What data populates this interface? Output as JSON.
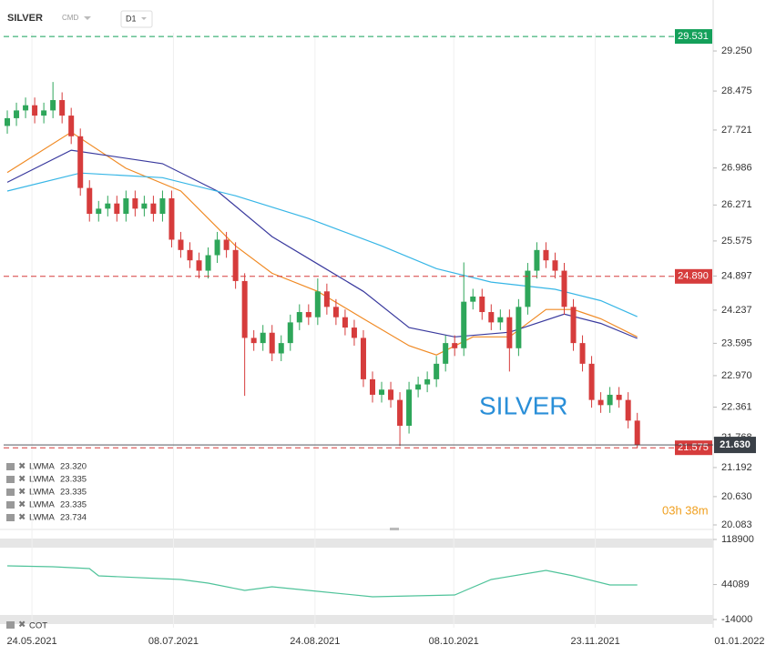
{
  "chart_data": {
    "type": "candlestick",
    "title": "SILVER",
    "symbol_type": "CMD",
    "timeframe": "D1",
    "watermark": "SILVER",
    "countdown": "03h 38m",
    "up_color": "#2ea65a",
    "down_color": "#d63c3c",
    "open": [
      27.8,
      27.95,
      28.1,
      28.2,
      28.0,
      28.1,
      28.3,
      28.0,
      27.6,
      26.6,
      26.1,
      26.2,
      26.3,
      26.1,
      26.4,
      26.2,
      26.3,
      26.1,
      26.4,
      25.6,
      25.4,
      25.2,
      25.0,
      25.3,
      25.6,
      25.4,
      24.8,
      23.7,
      23.6,
      23.8,
      23.4,
      23.6,
      24.0,
      24.2,
      24.1,
      24.6,
      24.3,
      24.1,
      23.9,
      23.7,
      22.9,
      22.6,
      22.7,
      22.5,
      22.0,
      22.7,
      22.8,
      22.9,
      23.2,
      23.6,
      23.5,
      24.4,
      24.5,
      24.2,
      24.0,
      24.1,
      23.5,
      24.3,
      25.0,
      25.4,
      25.2,
      25.0,
      24.3,
      23.6,
      23.2,
      22.5,
      22.4,
      22.6,
      22.5,
      22.1
    ],
    "high": [
      28.1,
      28.25,
      28.35,
      28.35,
      28.25,
      28.65,
      28.45,
      28.15,
      27.75,
      26.75,
      26.35,
      26.45,
      26.45,
      26.55,
      26.55,
      26.45,
      26.45,
      26.55,
      26.55,
      25.75,
      25.55,
      25.35,
      25.45,
      25.75,
      25.75,
      25.55,
      24.95,
      23.85,
      23.95,
      23.95,
      23.75,
      24.15,
      24.35,
      24.35,
      24.85,
      24.75,
      24.45,
      24.25,
      24.05,
      23.85,
      23.05,
      22.85,
      22.85,
      22.65,
      22.85,
      22.95,
      23.05,
      23.35,
      23.75,
      23.75,
      25.16,
      24.65,
      24.65,
      24.35,
      24.25,
      24.25,
      24.45,
      25.15,
      25.55,
      25.55,
      25.35,
      25.15,
      24.45,
      23.75,
      23.35,
      22.65,
      22.75,
      22.75,
      22.65,
      22.25
    ],
    "low": [
      27.65,
      27.8,
      27.95,
      27.85,
      27.85,
      27.95,
      27.85,
      27.45,
      26.45,
      25.95,
      25.95,
      26.05,
      25.95,
      25.95,
      26.05,
      26.05,
      25.95,
      25.95,
      25.45,
      25.25,
      25.05,
      24.85,
      24.85,
      25.15,
      25.25,
      24.65,
      22.58,
      23.45,
      23.45,
      23.25,
      23.25,
      23.45,
      23.85,
      23.95,
      23.95,
      24.15,
      23.95,
      23.75,
      23.55,
      22.75,
      22.45,
      22.45,
      22.35,
      21.61,
      21.85,
      22.55,
      22.65,
      22.75,
      23.05,
      23.35,
      23.35,
      24.25,
      24.05,
      23.85,
      23.85,
      23.05,
      23.35,
      24.15,
      24.85,
      25.05,
      24.85,
      24.15,
      23.45,
      23.05,
      22.35,
      22.25,
      22.25,
      22.35,
      21.95,
      21.57
    ],
    "close": [
      27.95,
      28.1,
      28.2,
      28.0,
      28.1,
      28.3,
      28.0,
      27.6,
      26.6,
      26.1,
      26.2,
      26.3,
      26.1,
      26.4,
      26.2,
      26.3,
      26.1,
      26.4,
      25.6,
      25.4,
      25.2,
      25.0,
      25.3,
      25.6,
      25.4,
      24.8,
      23.7,
      23.6,
      23.8,
      23.4,
      23.6,
      24.0,
      24.2,
      24.1,
      24.6,
      24.3,
      24.1,
      23.9,
      23.7,
      22.9,
      22.6,
      22.7,
      22.5,
      22.0,
      22.7,
      22.8,
      22.9,
      23.2,
      23.6,
      23.5,
      24.4,
      24.5,
      24.2,
      24.0,
      24.1,
      23.5,
      24.3,
      25.0,
      25.4,
      25.2,
      25.0,
      24.3,
      23.6,
      23.2,
      22.5,
      22.4,
      22.6,
      22.5,
      22.1,
      21.63
    ],
    "xlim": [
      -0.8,
      81.6
    ],
    "xticks": [
      {
        "value": 2.7,
        "label": "24.05.2021"
      },
      {
        "value": 18.2,
        "label": "08.07.2021"
      },
      {
        "value": 33.7,
        "label": "24.08.2021"
      },
      {
        "value": 48.9,
        "label": "08.10.2021"
      },
      {
        "value": 64.4,
        "label": "23.11.2021"
      },
      {
        "value": 80.2,
        "label": "01.01.2022"
      }
    ],
    "ylim": [
      20.03,
      30.236
    ],
    "yticks": [
      {
        "value": 29.25,
        "label": "29.250"
      },
      28.475,
      27.721,
      26.986,
      26.271,
      25.575,
      24.897,
      24.237,
      23.595,
      {
        "value": 22.97,
        "label": "22.970"
      },
      22.361,
      21.768,
      21.192,
      {
        "value": 20.63,
        "label": "20.630"
      },
      20.083
    ],
    "levels": [
      {
        "value": 29.531,
        "color": "#14a05a"
      },
      {
        "value": 24.89,
        "label": "24.890",
        "color": "#d63c3c"
      },
      {
        "value": 21.575,
        "color": "#d63c3c"
      }
    ],
    "last": {
      "value": 21.63,
      "label": "21.630",
      "color": "#3b4148"
    },
    "lines": [
      {
        "color": "#f08a24",
        "x": [
          0,
          7,
          13,
          19,
          25,
          29,
          34,
          39,
          44,
          47,
          51,
          55,
          59,
          62,
          65,
          69
        ],
        "values": [
          26.9,
          27.68,
          26.98,
          26.54,
          25.48,
          24.95,
          24.6,
          24.07,
          23.55,
          23.37,
          23.72,
          23.72,
          24.25,
          24.25,
          24.07,
          23.72
        ]
      },
      {
        "color": "#3a3a9e",
        "x": [
          0,
          7,
          17,
          23,
          29,
          34,
          39,
          44,
          49,
          55,
          61,
          65,
          69
        ],
        "values": [
          26.71,
          27.33,
          27.07,
          26.54,
          25.66,
          25.13,
          24.6,
          23.9,
          23.72,
          23.81,
          24.16,
          23.98,
          23.69
        ]
      },
      {
        "color": "#37b6e6",
        "x": [
          0,
          8,
          17,
          25,
          33,
          41,
          47,
          53,
          60,
          65,
          69
        ],
        "values": [
          26.54,
          26.89,
          26.8,
          26.45,
          26.01,
          25.48,
          25.04,
          24.78,
          24.64,
          24.42,
          24.11
        ]
      }
    ],
    "legend_items": [
      {
        "name": "LWMA",
        "value": "23.320"
      },
      {
        "name": "LWMA",
        "value": "23.335"
      },
      {
        "name": "LWMA",
        "value": "23.335"
      },
      {
        "name": "LWMA",
        "value": "23.335"
      },
      {
        "name": "LWMA",
        "value": "23.734"
      }
    ],
    "indicator": {
      "name": "COT",
      "color": "#4fc39a",
      "x": [
        0,
        5,
        9,
        10,
        19,
        22,
        26,
        29,
        34,
        40,
        49,
        53,
        59,
        62,
        66,
        69
      ],
      "values": [
        75110,
        73600,
        70580,
        58500,
        52460,
        46420,
        34340,
        40380,
        32830,
        23770,
        26790,
        52460,
        67560,
        58500,
        43400,
        43400
      ],
      "ylim": [
        -21550,
        126450
      ],
      "yticks": [
        118900,
        44089,
        -14000
      ]
    }
  }
}
